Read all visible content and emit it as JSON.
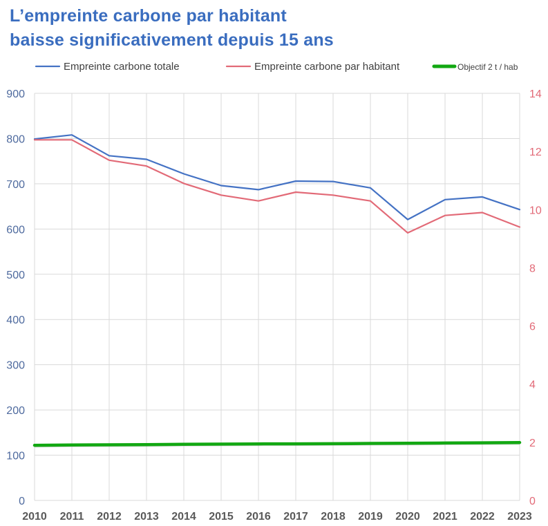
{
  "title_lines": [
    "L’empreinte carbone par habitant",
    "baisse significativement depuis 15 ans"
  ],
  "colors": {
    "title": "#3a6dbf",
    "total": "#4472c4",
    "per_capita": "#e26a77",
    "objective": "#12a812",
    "grid": "#d9d9d9",
    "left_axis_text": "#4e6a9e",
    "right_axis_text": "#e26a77"
  },
  "chart_data": {
    "type": "line",
    "x": [
      "2010",
      "2011",
      "2012",
      "2013",
      "2014",
      "2015",
      "2016",
      "2017",
      "2018",
      "2019",
      "2020",
      "2021",
      "2022",
      "2023"
    ],
    "y_left_ticks": [
      "0",
      "100",
      "200",
      "300",
      "400",
      "500",
      "600",
      "700",
      "800",
      "900"
    ],
    "y_right_ticks": [
      "0",
      "2",
      "4",
      "6",
      "8",
      "10",
      "12",
      "14"
    ],
    "ylim_left": [
      0,
      900
    ],
    "ylim_right": [
      0,
      14
    ],
    "grid": true,
    "legend_position": "top",
    "series": [
      {
        "name": "Empreinte carbone totale",
        "axis": "left",
        "values": [
          799,
          808,
          762,
          754,
          722,
          696,
          687,
          706,
          705,
          691,
          621,
          665,
          671,
          643
        ]
      },
      {
        "name": "Empreinte carbone par habitant",
        "axis": "right",
        "values": [
          12.4,
          12.4,
          11.7,
          11.5,
          10.9,
          10.5,
          10.3,
          10.6,
          10.5,
          10.3,
          9.2,
          9.8,
          9.9,
          9.4
        ]
      },
      {
        "name": "Objectif 2 t / hab",
        "axis": "left",
        "values": [
          122,
          122.5,
          123,
          123.5,
          124,
          124.5,
          125,
          125.2,
          125.5,
          126,
          126.5,
          127,
          127.5,
          128
        ]
      }
    ]
  }
}
